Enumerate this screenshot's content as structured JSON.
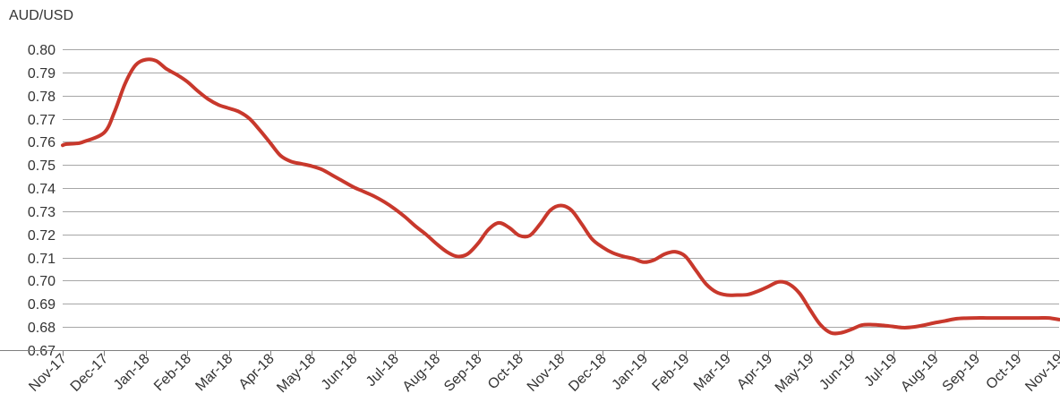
{
  "chart_data": {
    "type": "line",
    "ylabel": "AUD/USD",
    "xlabel": "",
    "title": "",
    "ylim": [
      0.67,
      0.8
    ],
    "yticks": [
      "0.80",
      "0.79",
      "0.78",
      "0.77",
      "0.76",
      "0.75",
      "0.74",
      "0.73",
      "0.72",
      "0.71",
      "0.70",
      "0.69",
      "0.68",
      "0.67"
    ],
    "grid": true,
    "legend": "none",
    "line_color": "#c8382c",
    "categories": [
      "Nov-17",
      "Dec-17",
      "Jan-18",
      "Feb-18",
      "Mar-18",
      "Apr-18",
      "May-18",
      "Jun-18",
      "Jul-18",
      "Aug-18",
      "Sep-18",
      "Oct-18",
      "Nov-18",
      "Dec-18",
      "Jan-19",
      "Feb-19",
      "Mar-19",
      "Apr-19",
      "May-19",
      "Jun-19",
      "Jul-19",
      "Aug-19",
      "Sep-19",
      "Oct-19",
      "Nov-19"
    ],
    "series": [
      {
        "x": [
          0,
          0.08,
          0.33,
          0.5,
          1.0,
          1.25,
          1.5,
          1.75,
          2.0,
          2.25,
          2.5,
          2.75,
          3.0,
          3.25,
          3.5,
          3.75,
          4.0,
          4.25,
          4.5,
          4.75,
          5.0,
          5.25,
          5.5,
          5.75,
          6.0,
          6.25,
          6.5,
          6.75,
          7.0,
          7.25,
          7.5,
          7.75,
          8.0,
          8.25,
          8.5,
          8.75,
          9.0,
          9.25,
          9.5,
          9.75,
          10.0,
          10.25,
          10.5,
          10.75,
          11.0,
          11.25,
          11.5,
          11.75,
          12.0,
          12.25,
          12.5,
          12.75,
          13.0,
          13.25,
          13.5,
          13.75,
          14.0,
          14.25,
          14.5,
          14.75,
          15.0,
          15.25,
          15.5,
          15.75,
          16.0,
          16.25,
          16.5,
          16.75,
          17.0,
          17.25,
          17.5,
          17.75,
          18.0,
          18.25,
          18.5,
          18.75,
          19.0,
          19.25,
          19.5,
          19.75,
          20.0,
          20.25,
          20.5,
          20.75,
          21.0,
          21.25,
          21.5,
          21.75,
          22.0,
          22.25,
          22.5,
          22.75,
          23.0,
          23.25,
          23.5,
          23.75,
          24.0
        ],
        "values": [
          0.7585,
          0.759,
          0.7593,
          0.76,
          0.764,
          0.773,
          0.785,
          0.793,
          0.7955,
          0.795,
          0.7915,
          0.789,
          0.786,
          0.782,
          0.7785,
          0.776,
          0.7745,
          0.773,
          0.77,
          0.765,
          0.7595,
          0.754,
          0.7515,
          0.7505,
          0.7495,
          0.748,
          0.7455,
          0.743,
          0.7405,
          0.7385,
          0.7365,
          0.734,
          0.731,
          0.7275,
          0.7235,
          0.72,
          0.716,
          0.7125,
          0.7105,
          0.7115,
          0.716,
          0.722,
          0.725,
          0.723,
          0.7195,
          0.7195,
          0.7245,
          0.7305,
          0.7325,
          0.7305,
          0.7245,
          0.718,
          0.7145,
          0.712,
          0.7105,
          0.7095,
          0.708,
          0.709,
          0.7115,
          0.7125,
          0.7105,
          0.7045,
          0.6985,
          0.695,
          0.6938,
          0.6938,
          0.694,
          0.6955,
          0.6975,
          0.6995,
          0.6985,
          0.6945,
          0.6875,
          0.681,
          0.6775,
          0.6775,
          0.679,
          0.6808,
          0.681,
          0.6807,
          0.6802,
          0.6797,
          0.68,
          0.6808,
          0.6818,
          0.6826,
          0.6835,
          0.6838,
          0.6839,
          0.6839,
          0.6839,
          0.6839,
          0.6839,
          0.6839,
          0.6839,
          0.6839,
          0.6832
        ]
      }
    ]
  }
}
